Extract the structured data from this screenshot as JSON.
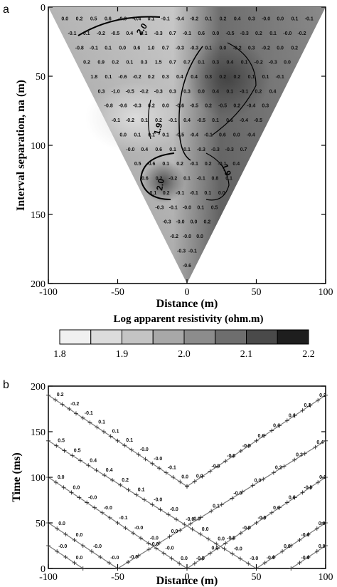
{
  "chart_data": [
    {
      "type": "heatmap",
      "panel_label": "a",
      "xlabel": "Distance (m)",
      "ylabel": "Interval separation, na (m)",
      "xlim": [
        -100,
        100
      ],
      "ylim": [
        200,
        0
      ],
      "xticks": [
        "-100",
        "-50",
        "0",
        "50",
        "100"
      ],
      "yticks": [
        "0",
        "50",
        "100",
        "150",
        "200"
      ],
      "colorbar_title": "Log apparent resistivity (ohm.m)",
      "colorbar_ticks": [
        "1.8",
        "1.9",
        "2.0",
        "2.1",
        "2.2"
      ],
      "colorbar_range": [
        1.8,
        2.2
      ],
      "contour_labels": [
        "2.0",
        "1.9",
        "1.9",
        "2.0"
      ],
      "rows": [
        [
          "0.0",
          "0.2",
          "0.5",
          "0.6",
          "-0.3",
          "-0.4",
          "0.1",
          "-0.1",
          "-0.4",
          "-0.2",
          "0.1",
          "0.2",
          "0.4",
          "0.3",
          "-0.0",
          "0.0",
          "0.1",
          "-0.1"
        ],
        [
          "-0.1",
          "0.1",
          "-0.2",
          "-0.5",
          "0.4",
          "0.1",
          "-0.3",
          "0.7",
          "-0.1",
          "0.6",
          "0.0",
          "-0.5",
          "-0.3",
          "0.2",
          "0.1",
          "-0.0",
          "-0.2"
        ],
        [
          "-0.8",
          "-0.1",
          "0.1",
          "0.0",
          "0.6",
          "1.0",
          "0.7",
          "-0.3",
          "-0.3",
          "0.1",
          "0.0",
          "-0.2",
          "0.3",
          "-0.2",
          "0.0",
          "0.2"
        ],
        [
          "0.2",
          "0.9",
          "0.2",
          "0.1",
          "0.3",
          "1.5",
          "0.7",
          "0.7",
          "0.1",
          "0.3",
          "0.4",
          "0.1",
          "-0.2",
          "-0.3",
          "0.0"
        ],
        [
          "1.8",
          "0.1",
          "-0.6",
          "-0.2",
          "0.2",
          "0.3",
          "0.4",
          "0.4",
          "0.3",
          "0.2",
          "0.2",
          "0.1",
          "0.1",
          "-0.1"
        ],
        [
          "0.3",
          "-1.0",
          "-0.5",
          "-0.2",
          "-0.3",
          "0.3",
          "0.3",
          "0.0",
          "0.4",
          "0.1",
          "-0.1",
          "0.2",
          "0.4"
        ],
        [
          "-0.8",
          "-0.6",
          "-0.3",
          "0.2",
          "0.0",
          "-0.6",
          "-0.5",
          "0.2",
          "-0.5",
          "0.2",
          "-0.4",
          "0.3"
        ],
        [
          "-0.1",
          "-0.2",
          "0.1",
          "0.2",
          "-0.1",
          "0.4",
          "-0.5",
          "0.1",
          "0.6",
          "-0.4",
          "-0.5"
        ],
        [
          "0.0",
          "0.1",
          "0.1",
          "0.1",
          "-0.5",
          "-0.4",
          "-0.1",
          "0.6",
          "0.0",
          "-0.4"
        ],
        [
          "-0.0",
          "0.4",
          "0.6",
          "0.1",
          "0.1",
          "-0.3",
          "-0.3",
          "-0.3",
          "0.7"
        ],
        [
          "0.5",
          "0.6",
          "0.1",
          "0.2",
          "-0.1",
          "0.2",
          "-0.1",
          "0.4"
        ],
        [
          "0.6",
          "0.2",
          "-0.2",
          "0.1",
          "-0.1",
          "0.8",
          "0.1"
        ],
        [
          "-0.1",
          "0.2",
          "-0.1",
          "-0.1",
          "0.1",
          "0.0"
        ],
        [
          "-0.3",
          "-0.1",
          "-0.0",
          "0.1",
          "0.5"
        ],
        [
          "-0.3",
          "-0.0",
          "0.0",
          "0.2"
        ],
        [
          "-0.2",
          "-0.0",
          "0.0"
        ],
        [
          "-0.3",
          "-0.1"
        ],
        [
          "-0.6"
        ]
      ]
    },
    {
      "type": "line",
      "panel_label": "b",
      "xlabel": "Distance (m)",
      "ylabel": "Time (ms)",
      "xlim": [
        -100,
        100
      ],
      "ylim": [
        0,
        200
      ],
      "xticks": [
        "-100",
        "-50",
        "0",
        "50",
        "100"
      ],
      "yticks": [
        "0",
        "50",
        "100",
        "150",
        "200"
      ],
      "lines_down": [
        {
          "x": [
            -100,
            0
          ],
          "y": [
            190,
            90
          ],
          "labels": [
            "0.2",
            "-0.2",
            "-0.1",
            "0.1",
            "0.1",
            "0.1",
            "-0.0",
            "-0.0",
            "-0.1",
            "0.0"
          ]
        },
        {
          "x": [
            -100,
            50
          ],
          "y": [
            140,
            0
          ],
          "labels": [
            "0.5",
            "0.5",
            "0.4",
            "0.4",
            "0.2",
            "0.1",
            "-0.0",
            "-0.0",
            "-0.0",
            "0.0",
            "0.0",
            "-0.0",
            "-0.0"
          ]
        },
        {
          "x": [
            -100,
            0
          ],
          "y": [
            100,
            0
          ],
          "labels": [
            "0.0",
            "0.0",
            "-0.0",
            "-0.0",
            "-0.1",
            "-0.0",
            "-0.0",
            "-0.0",
            "0.0"
          ]
        },
        {
          "x": [
            -100,
            -50
          ],
          "y": [
            50,
            0
          ],
          "labels": [
            "0.0",
            "0.0",
            "-0.0",
            "-0.0"
          ]
        },
        {
          "x": [
            -100,
            -75
          ],
          "y": [
            25,
            0
          ],
          "labels": [
            "-0.0",
            "0.0"
          ]
        }
      ],
      "lines_up": [
        {
          "x": [
            0,
            100
          ],
          "y": [
            90,
            190
          ],
          "labels": [
            "0.0",
            "-0.0",
            "-0.0",
            "-0.0",
            "0.0",
            "0.1",
            "0.1",
            "0.1",
            "0.2"
          ]
        },
        {
          "x": [
            -50,
            100
          ],
          "y": [
            0,
            140
          ],
          "labels": [
            "-0.0",
            "-0.0",
            "0.0",
            "-0.0",
            "0.1",
            "-0.0",
            "0.0",
            "0.2",
            "0.3",
            "0.4"
          ]
        },
        {
          "x": [
            0,
            100
          ],
          "y": [
            0,
            100
          ],
          "labels": [
            "-0.0",
            "0.0",
            "-0.0",
            "-0.0",
            "-0.0",
            "0.0",
            "0.0",
            "-0.0",
            "0.1"
          ]
        },
        {
          "x": [
            50,
            100
          ],
          "y": [
            0,
            50
          ],
          "labels": [
            "-0.0",
            "0.0",
            "-0.0",
            "0.0"
          ]
        },
        {
          "x": [
            75,
            100
          ],
          "y": [
            0,
            25
          ],
          "labels": [
            "-0.0",
            "0.0"
          ]
        }
      ]
    }
  ]
}
